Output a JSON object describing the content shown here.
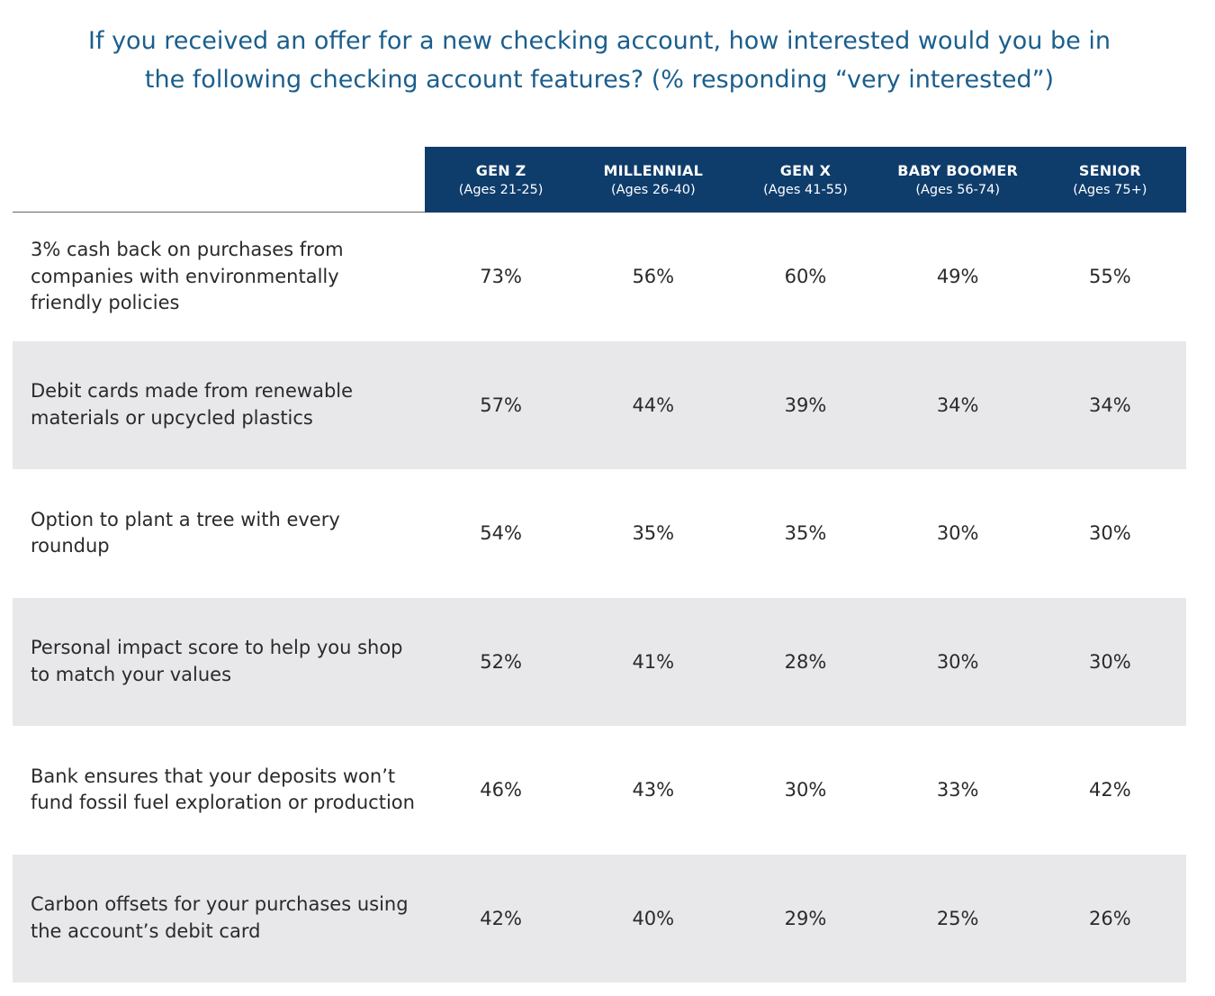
{
  "chart_data": {
    "type": "table",
    "title_lines": [
      "If you received an offer for a new checking account, how interested would you be in",
      "the following checking account features? (% responding “very interested”)"
    ],
    "columns": [
      {
        "name": "GEN Z",
        "ages": "(Ages 21-25)"
      },
      {
        "name": "MILLENNIAL",
        "ages": "(Ages 26-40)"
      },
      {
        "name": "GEN X",
        "ages": "(Ages 41-55)"
      },
      {
        "name": "BABY BOOMER",
        "ages": "(Ages 56-74)"
      },
      {
        "name": "SENIOR",
        "ages": "(Ages 75+)"
      }
    ],
    "rows": [
      {
        "feature": "3% cash back on purchases from companies with environmentally friendly policies",
        "values": [
          "73%",
          "56%",
          "60%",
          "49%",
          "55%"
        ]
      },
      {
        "feature": "Debit cards made from renewable materials or upcycled plastics",
        "values": [
          "57%",
          "44%",
          "39%",
          "34%",
          "34%"
        ]
      },
      {
        "feature": "Option to plant a tree with every roundup",
        "values": [
          "54%",
          "35%",
          "35%",
          "30%",
          "30%"
        ]
      },
      {
        "feature": "Personal impact score to help you shop to match your values",
        "values": [
          "52%",
          "41%",
          "28%",
          "30%",
          "30%"
        ]
      },
      {
        "feature": "Bank ensures that your deposits won’t fund fossil fuel exploration or production",
        "values": [
          "46%",
          "43%",
          "30%",
          "33%",
          "42%"
        ]
      },
      {
        "feature": "Carbon offsets for your purchases using the account’s debit card",
        "values": [
          "42%",
          "40%",
          "29%",
          "25%",
          "26%"
        ]
      }
    ],
    "colors": {
      "title": "#1b5e8c",
      "header_band": "#0e3c6b",
      "header_text": "#ffffff",
      "shaded_row": "#e8e8ea",
      "body_text": "#2a2a2a"
    }
  }
}
